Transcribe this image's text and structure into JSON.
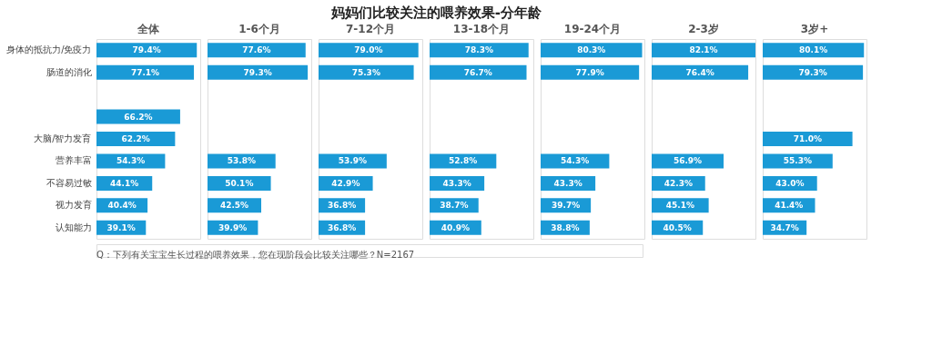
{
  "chart_data": [
    {
      "type": "other",
      "title": "妈妈们比较关注的喂养效果-分年龄",
      "annotations": [
        "Q：下列有关宝宝生长过程的喂养效果，您在现阶段会比较关注哪些？N=2167"
      ]
    },
    {
      "type": "bar",
      "orientation": "horizontal",
      "title": "全体",
      "categories": [
        "身体的抵抗力/免疫力",
        "肠道的消化",
        null,
        null,
        "大脑/智力发育",
        "营养丰富",
        "不容易过敏",
        "视力发育",
        "认知能力"
      ],
      "color": "#1a9ad6",
      "values": [
        79.4,
        77.1,
        null,
        66.2,
        62.2,
        54.3,
        44.1,
        40.4,
        39.1
      ],
      "value_labels": [
        "79.4%",
        "77.1%",
        null,
        "66.2%",
        "62.2%",
        "54.3%",
        "44.1%",
        "40.4%",
        "39.1%"
      ]
    },
    {
      "type": "bar",
      "orientation": "horizontal",
      "title": "1-6个月",
      "tick_labels": false,
      "color": "#1a9ad6",
      "values": [
        77.6,
        79.3,
        null,
        null,
        null,
        53.8,
        50.1,
        42.5,
        39.9
      ],
      "value_labels": [
        "77.6%",
        "79.3%",
        null,
        null,
        null,
        "53.8%",
        "50.1%",
        "42.5%",
        "39.9%"
      ]
    },
    {
      "type": "bar",
      "orientation": "horizontal",
      "title": "7-12个月",
      "tick_labels": false,
      "color": "#1a9ad6",
      "values": [
        79.0,
        75.3,
        null,
        null,
        null,
        53.9,
        42.9,
        36.8,
        36.8
      ],
      "value_labels": [
        "79.0%",
        "75.3%",
        null,
        null,
        null,
        "53.9%",
        "42.9%",
        "36.8%",
        "36.8%"
      ]
    },
    {
      "type": "bar",
      "orientation": "horizontal",
      "title": "13-18个月",
      "tick_labels": false,
      "color": "#1a9ad6",
      "values": [
        78.3,
        76.7,
        null,
        null,
        null,
        52.8,
        43.3,
        38.7,
        40.9
      ],
      "value_labels": [
        "78.3%",
        "76.7%",
        null,
        null,
        null,
        "52.8%",
        "43.3%",
        "38.7%",
        "40.9%"
      ]
    },
    {
      "type": "bar",
      "orientation": "horizontal",
      "title": "19-24个月",
      "tick_labels": false,
      "color": "#1a9ad6",
      "values": [
        80.3,
        77.9,
        null,
        null,
        null,
        54.3,
        43.3,
        39.7,
        38.8
      ],
      "value_labels": [
        "80.3%",
        "77.9%",
        null,
        null,
        null,
        "54.3%",
        "43.3%",
        "39.7%",
        "38.8%"
      ]
    },
    {
      "type": "bar",
      "orientation": "horizontal",
      "title": "2-3岁",
      "tick_labels": false,
      "color": "#1a9ad6",
      "values": [
        82.1,
        76.4,
        null,
        null,
        null,
        56.9,
        42.3,
        45.1,
        40.5
      ],
      "value_labels": [
        "82.1%",
        "76.4%",
        null,
        null,
        null,
        "56.9%",
        "42.3%",
        "45.1%",
        "40.5%"
      ]
    },
    {
      "type": "bar",
      "orientation": "horizontal",
      "title": "3岁+",
      "tick_labels": false,
      "color": "#1a9ad6",
      "values": [
        80.1,
        79.3,
        null,
        null,
        71.0,
        55.3,
        43.0,
        41.4,
        34.7
      ],
      "value_labels": [
        "80.1%",
        "79.3%",
        null,
        null,
        "71.0%",
        "55.3%",
        "43.0%",
        "41.4%",
        "34.7%"
      ]
    }
  ]
}
